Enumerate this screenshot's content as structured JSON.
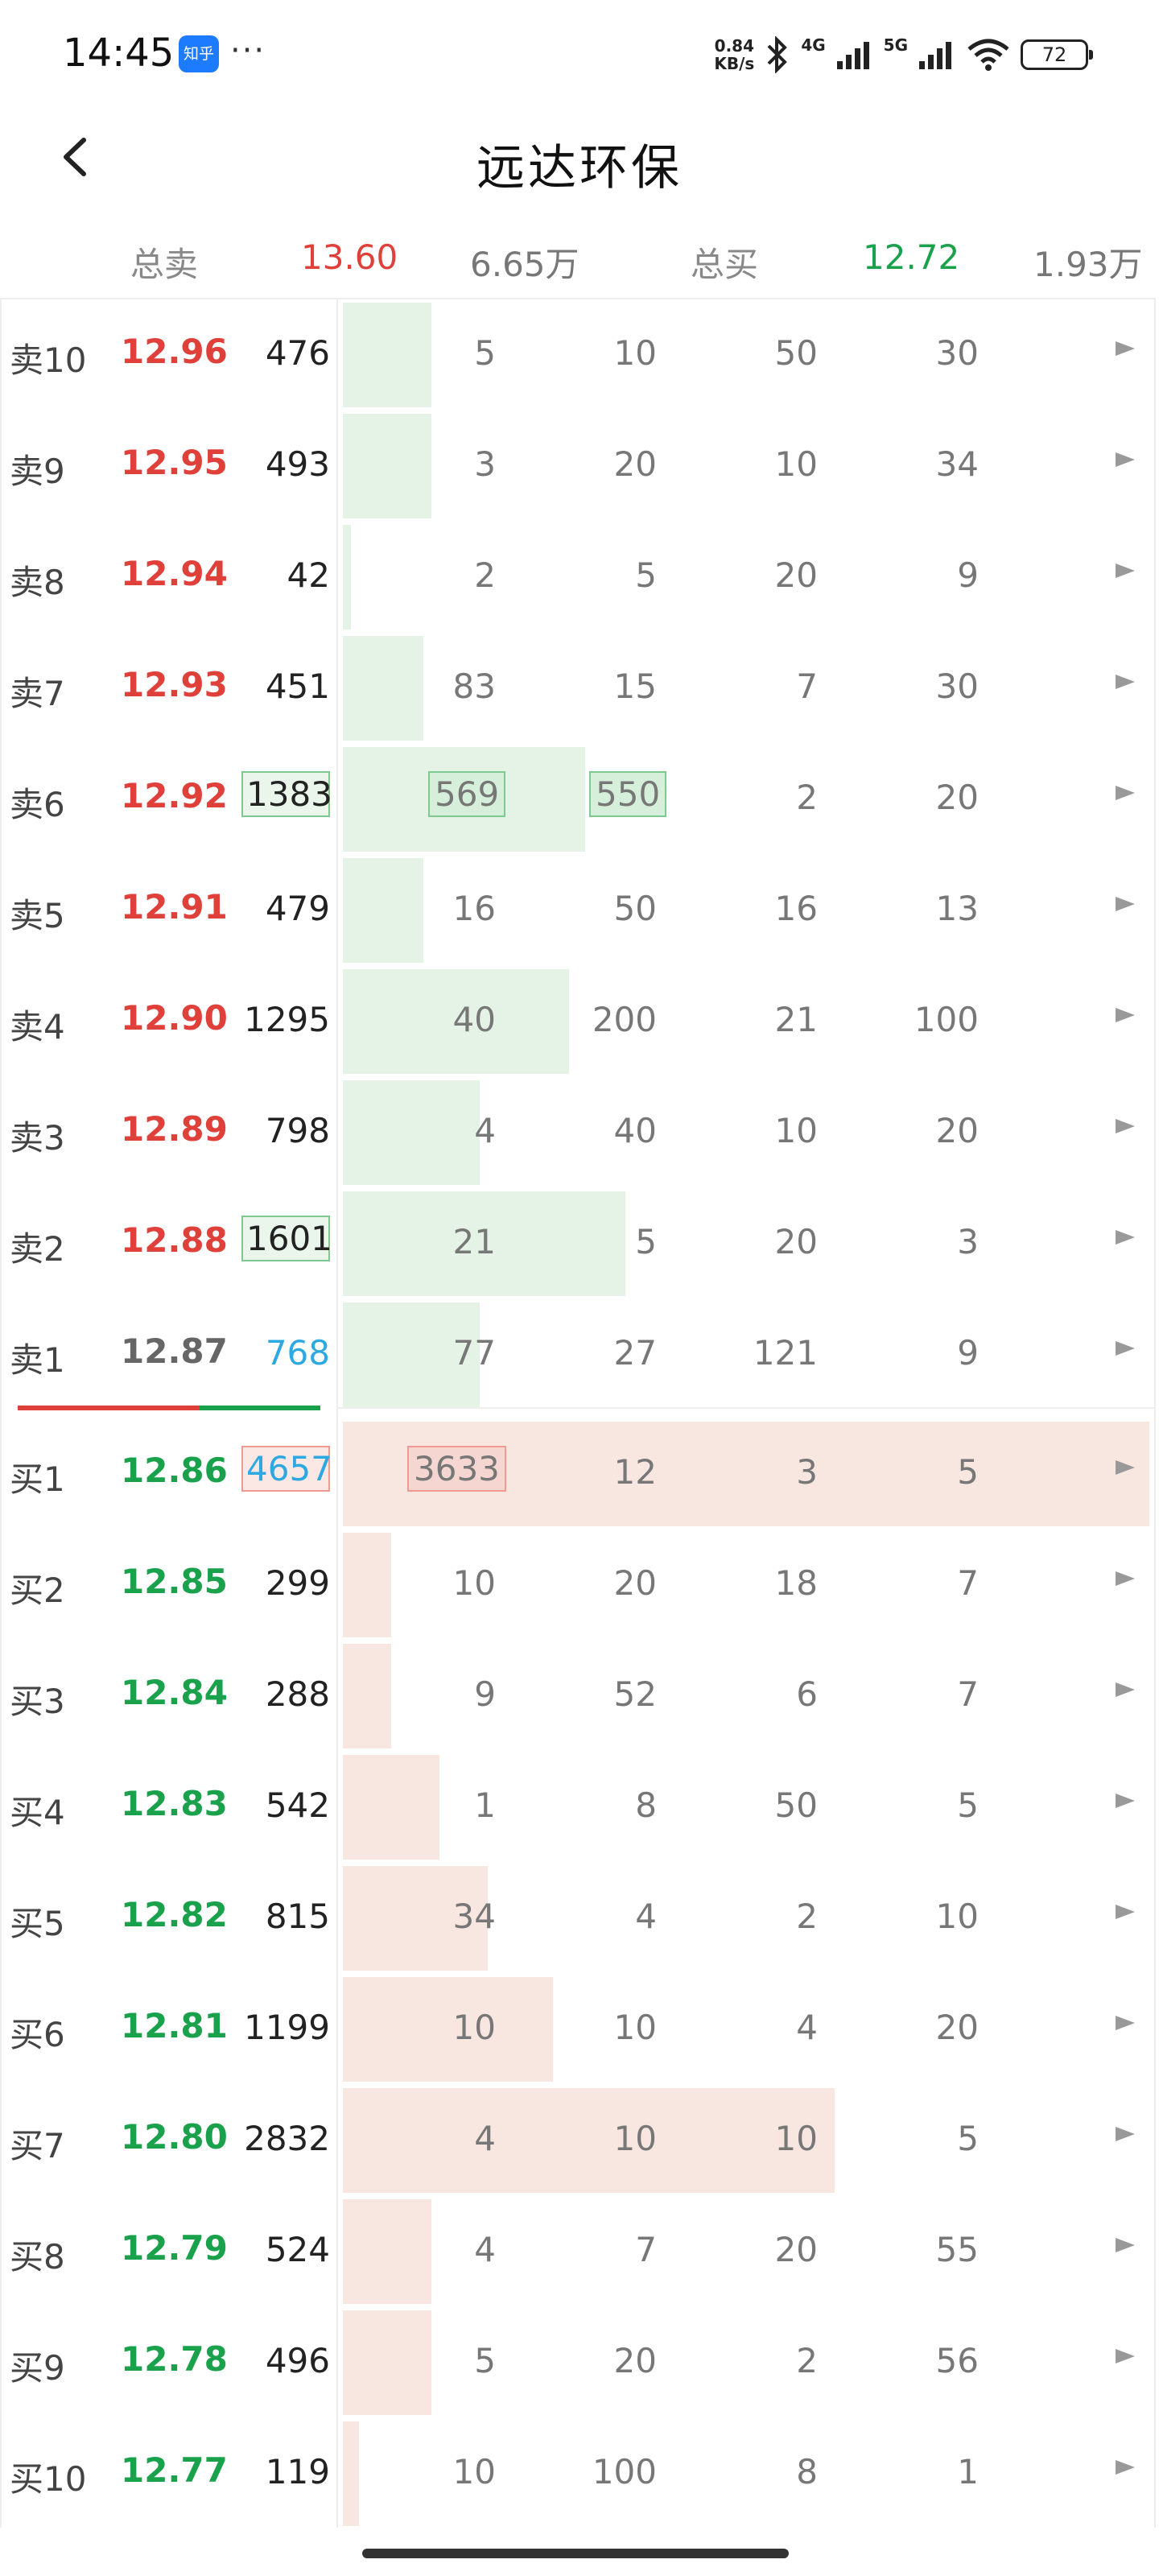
{
  "status_bar": {
    "time": "14:45",
    "zhihu_badge": "知乎",
    "more": "···",
    "speed_top": "0.84",
    "speed_bottom": "KB/s",
    "net1": "4G",
    "net2": "5G",
    "battery": "72"
  },
  "header": {
    "title": "远达环保"
  },
  "summary": {
    "sell_label": "总卖",
    "sell_price": "13.60",
    "sell_volume": "6.65万",
    "buy_label": "总买",
    "buy_price": "12.72",
    "buy_volume": "1.93万"
  },
  "asks": [
    {
      "label": "卖10",
      "price": "12.96",
      "volume": "476",
      "queue": [
        "5",
        "10",
        "50",
        "30"
      ],
      "depth_fraction": 0.11
    },
    {
      "label": "卖9",
      "price": "12.95",
      "volume": "493",
      "queue": [
        "3",
        "20",
        "10",
        "34"
      ],
      "depth_fraction": 0.11
    },
    {
      "label": "卖8",
      "price": "12.94",
      "volume": "42",
      "queue": [
        "2",
        "5",
        "20",
        "9"
      ],
      "depth_fraction": 0.01
    },
    {
      "label": "卖7",
      "price": "12.93",
      "volume": "451",
      "queue": [
        "83",
        "15",
        "7",
        "30"
      ],
      "depth_fraction": 0.1
    },
    {
      "label": "卖6",
      "price": "12.92",
      "volume": "1383",
      "queue": [
        "569",
        "550",
        "2",
        "20"
      ],
      "depth_fraction": 0.3
    },
    {
      "label": "卖5",
      "price": "12.91",
      "volume": "479",
      "queue": [
        "16",
        "50",
        "16",
        "13"
      ],
      "depth_fraction": 0.1
    },
    {
      "label": "卖4",
      "price": "12.90",
      "volume": "1295",
      "queue": [
        "40",
        "200",
        "21",
        "100"
      ],
      "depth_fraction": 0.28
    },
    {
      "label": "卖3",
      "price": "12.89",
      "volume": "798",
      "queue": [
        "4",
        "40",
        "10",
        "20"
      ],
      "depth_fraction": 0.17
    },
    {
      "label": "卖2",
      "price": "12.88",
      "volume": "1601",
      "queue": [
        "21",
        "5",
        "20",
        "3"
      ],
      "depth_fraction": 0.35
    },
    {
      "label": "卖1",
      "price": "12.87",
      "volume": "768",
      "queue": [
        "77",
        "27",
        "121",
        "9"
      ],
      "depth_fraction": 0.17
    }
  ],
  "bids": [
    {
      "label": "买1",
      "price": "12.86",
      "volume": "4657",
      "queue": [
        "3633",
        "12",
        "3",
        "5"
      ],
      "depth_fraction": 1.0
    },
    {
      "label": "买2",
      "price": "12.85",
      "volume": "299",
      "queue": [
        "10",
        "20",
        "18",
        "7"
      ],
      "depth_fraction": 0.06
    },
    {
      "label": "买3",
      "price": "12.84",
      "volume": "288",
      "queue": [
        "9",
        "52",
        "6",
        "7"
      ],
      "depth_fraction": 0.06
    },
    {
      "label": "买4",
      "price": "12.83",
      "volume": "542",
      "queue": [
        "1",
        "8",
        "50",
        "5"
      ],
      "depth_fraction": 0.12
    },
    {
      "label": "买5",
      "price": "12.82",
      "volume": "815",
      "queue": [
        "34",
        "4",
        "2",
        "10"
      ],
      "depth_fraction": 0.18
    },
    {
      "label": "买6",
      "price": "12.81",
      "volume": "1199",
      "queue": [
        "10",
        "10",
        "4",
        "20"
      ],
      "depth_fraction": 0.26
    },
    {
      "label": "买7",
      "price": "12.80",
      "volume": "2832",
      "queue": [
        "4",
        "10",
        "10",
        "5"
      ],
      "depth_fraction": 0.61
    },
    {
      "label": "买8",
      "price": "12.79",
      "volume": "524",
      "queue": [
        "4",
        "7",
        "20",
        "55"
      ],
      "depth_fraction": 0.11
    },
    {
      "label": "买9",
      "price": "12.78",
      "volume": "496",
      "queue": [
        "5",
        "20",
        "2",
        "56"
      ],
      "depth_fraction": 0.11
    },
    {
      "label": "买10",
      "price": "12.77",
      "volume": "119",
      "queue": [
        "10",
        "100",
        "8",
        "1"
      ],
      "depth_fraction": 0.02
    }
  ],
  "colors": {
    "up_red": "#e0403a",
    "down_green": "#1aa14b",
    "highlight_blue": "#2ea8e0"
  }
}
